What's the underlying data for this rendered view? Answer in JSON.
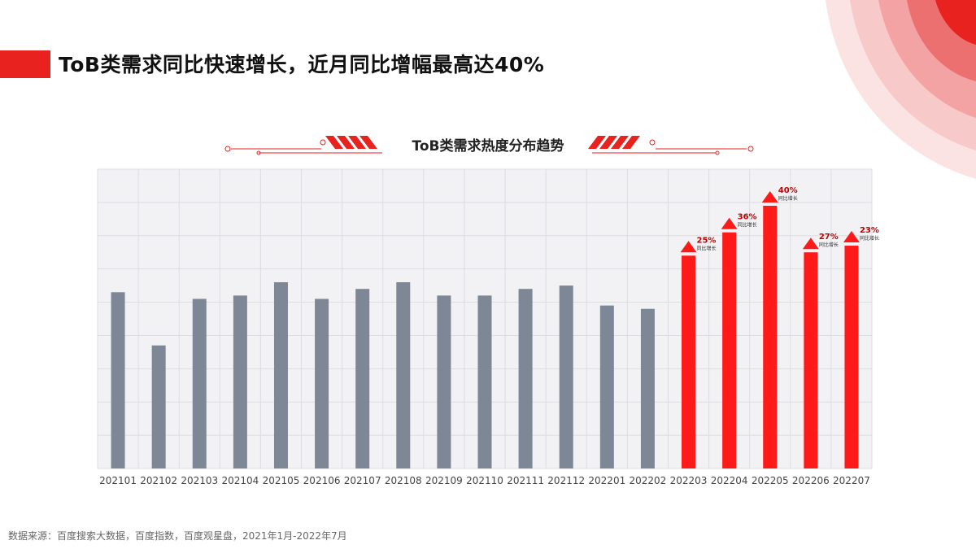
{
  "page": {
    "title": "ToB类需求同比快速增长，近月同比增幅最高达40%",
    "source": "数据来源：百度搜索大数据，百度指数，百度观星盘，2021年1月-2022年7月"
  },
  "colors": {
    "accent": "#e8231f",
    "bar_gray": "#7d8795",
    "bar_red": "#ff1a1a",
    "plot_bg": "#f2f2f4",
    "grid": "#dcdde2"
  },
  "chart_data": {
    "type": "bar",
    "title": "ToB类需求热度分布趋势",
    "xlabel": "",
    "ylabel": "",
    "ylim": [
      0,
      9
    ],
    "grid": true,
    "categories": [
      "202101",
      "202102",
      "202103",
      "202104",
      "202105",
      "202106",
      "202107",
      "202108",
      "202109",
      "202110",
      "202111",
      "202112",
      "202201",
      "202202",
      "202203",
      "202204",
      "202205",
      "202206",
      "202207"
    ],
    "values": [
      5.3,
      3.7,
      5.1,
      5.2,
      5.6,
      5.1,
      5.4,
      5.6,
      5.2,
      5.2,
      5.4,
      5.5,
      4.9,
      4.8,
      6.4,
      7.1,
      7.9,
      6.5,
      6.7
    ],
    "highlight_from_index": 14,
    "annotations": [
      {
        "category": "202203",
        "value_label": "25%",
        "sub_label": "同比增长"
      },
      {
        "category": "202204",
        "value_label": "36%",
        "sub_label": "同比增长"
      },
      {
        "category": "202205",
        "value_label": "40%",
        "sub_label": "同比增长"
      },
      {
        "category": "202206",
        "value_label": "27%",
        "sub_label": "同比增长"
      },
      {
        "category": "202207",
        "value_label": "23%",
        "sub_label": "同比增长"
      }
    ]
  }
}
